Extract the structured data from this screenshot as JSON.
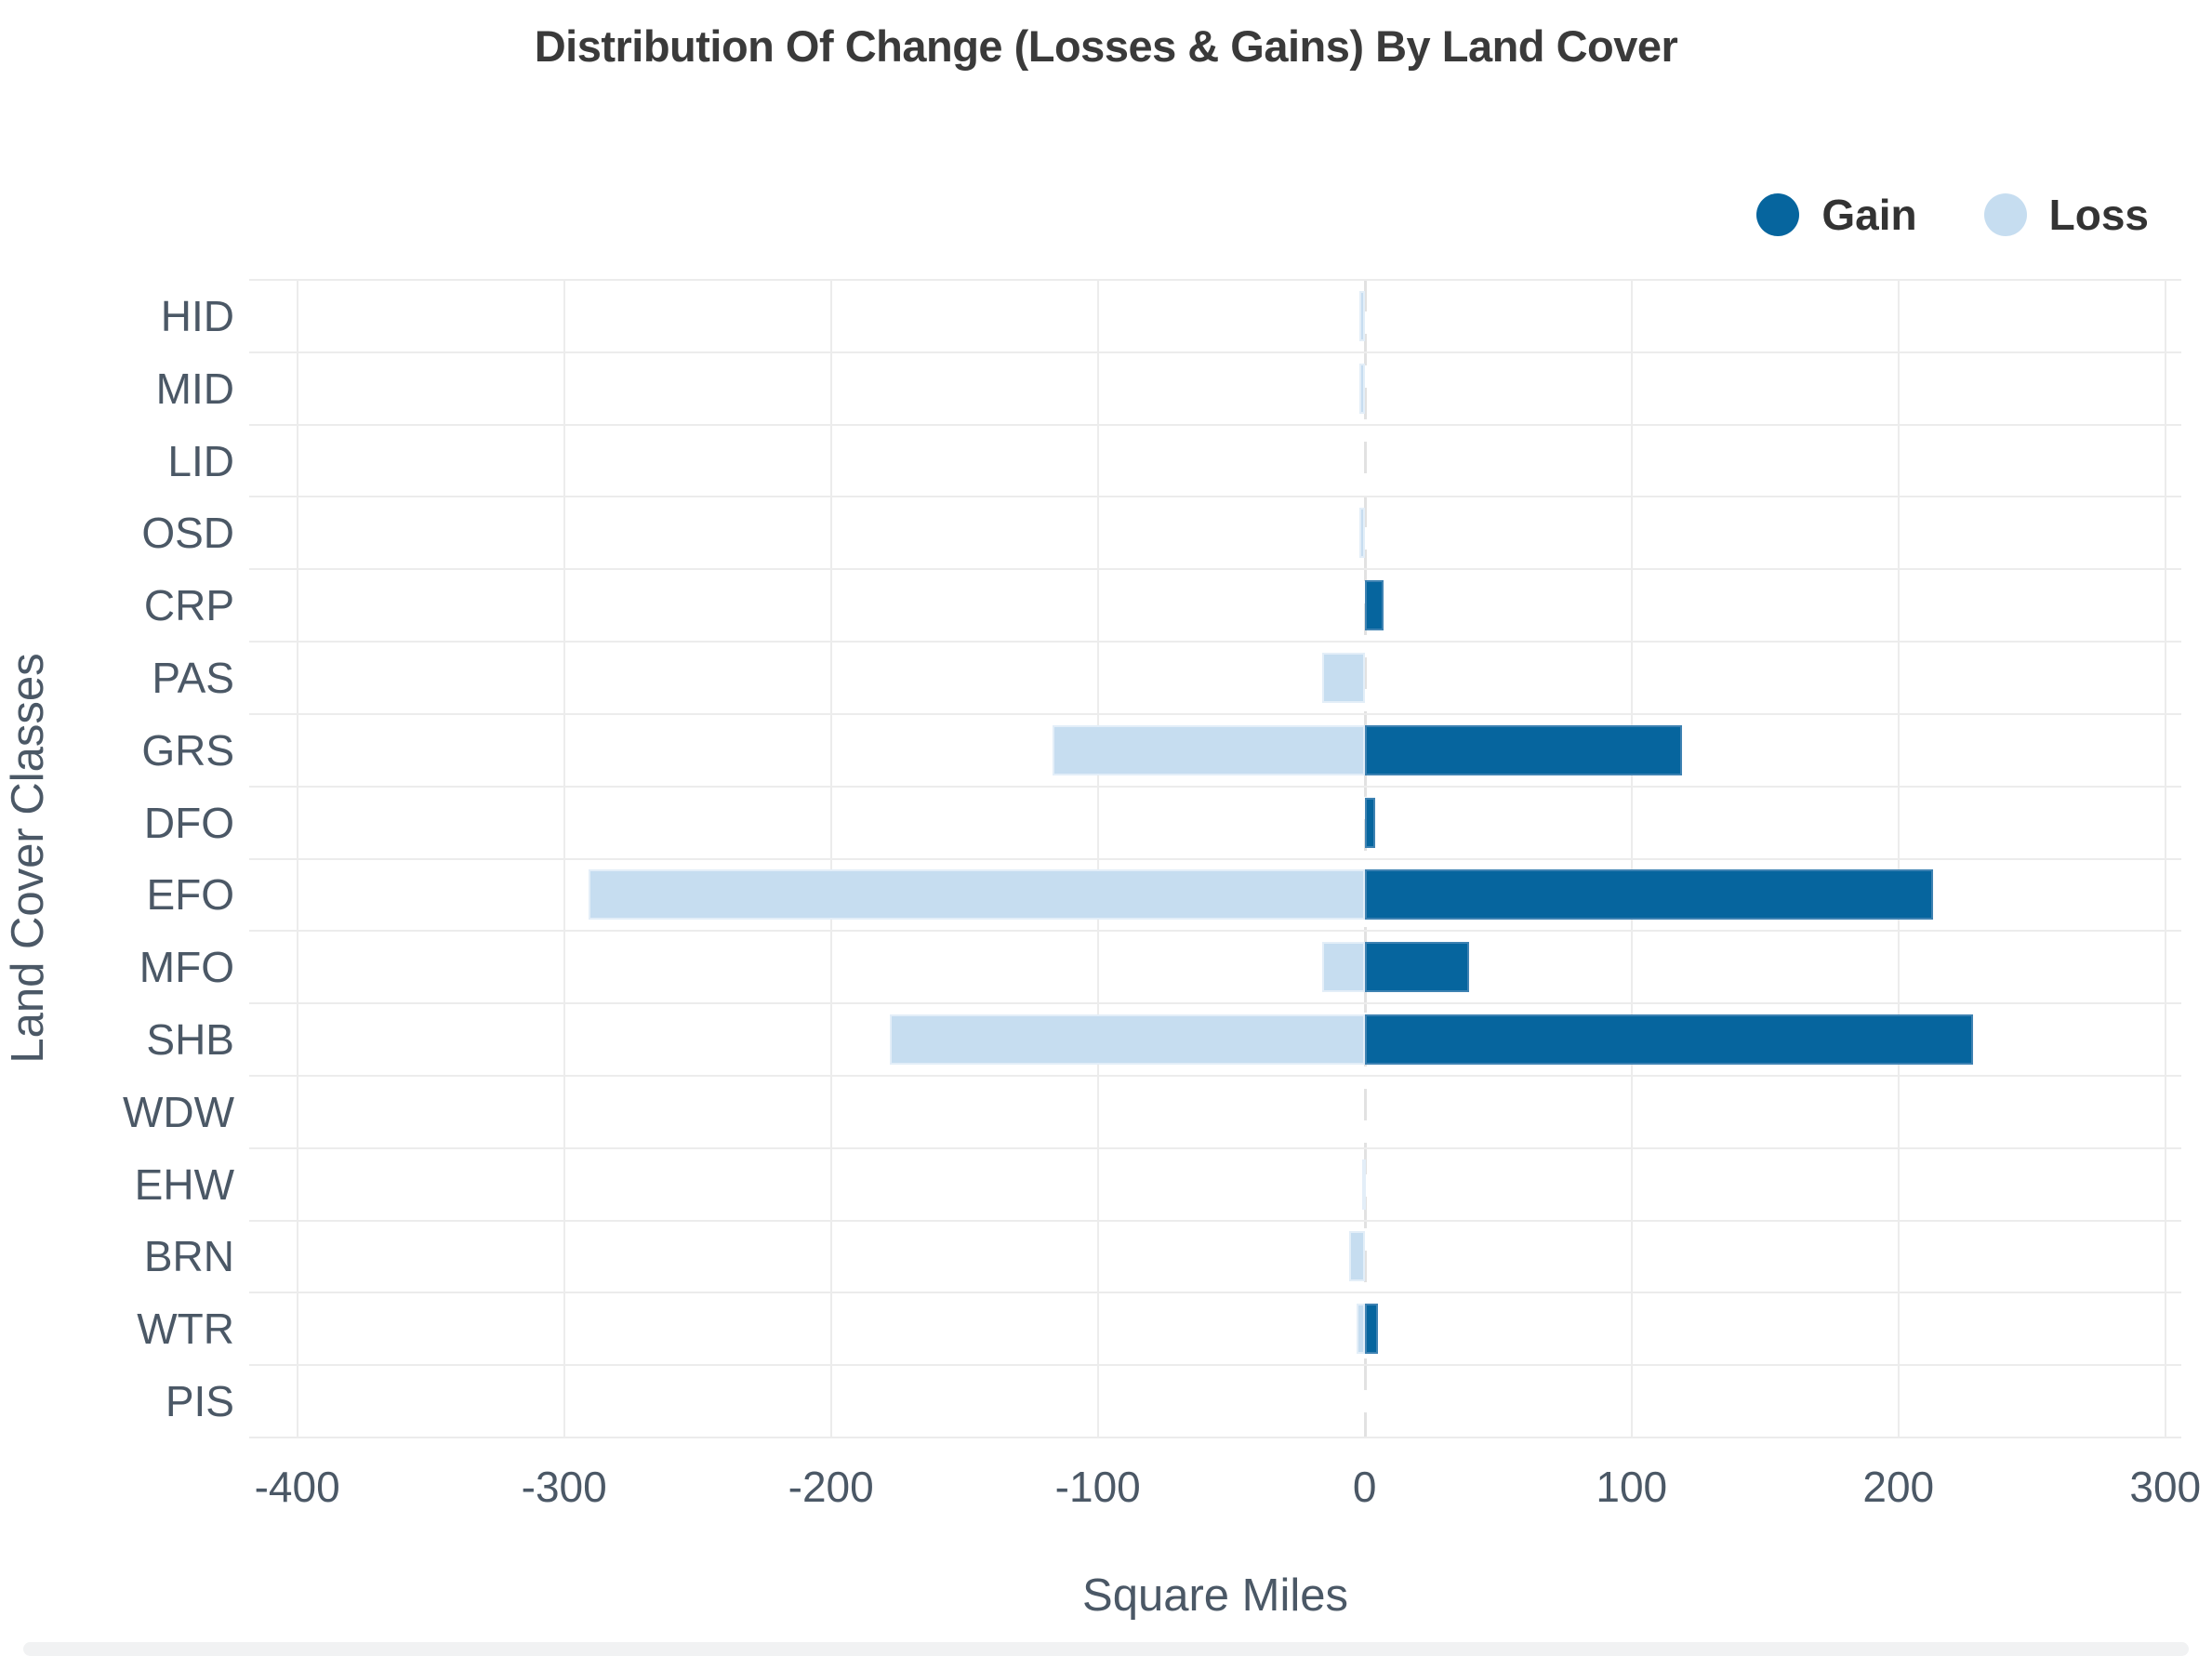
{
  "title": "Distribution Of Change (Losses & Gains) By Land Cover",
  "legend": {
    "items": [
      {
        "id": "gain",
        "label": "Gain"
      },
      {
        "id": "loss",
        "label": "Loss"
      }
    ]
  },
  "colors": {
    "gain": "#06659e",
    "loss": "#c6ddf0",
    "grid": "#ececec",
    "zero_line": "#e2e2e2",
    "title_text": "#3a3a3a",
    "axis_text": "#4b5866"
  },
  "chart_data": {
    "type": "bar",
    "orientation": "horizontal",
    "title": "Distribution Of Change (Losses & Gains) By Land Cover",
    "xlabel": "Square Miles",
    "ylabel": "Land Cover Classes",
    "categories": [
      "HID",
      "MID",
      "LID",
      "OSD",
      "CRP",
      "PAS",
      "GRS",
      "DFO",
      "EFO",
      "MFO",
      "SHB",
      "WDW",
      "EHW",
      "BRN",
      "WTR",
      "PIS"
    ],
    "series": [
      {
        "name": "Gain",
        "values": [
          0,
          0,
          0,
          0,
          7,
          0,
          119,
          4,
          213,
          39,
          228,
          0,
          0,
          0,
          5,
          0
        ]
      },
      {
        "name": "Loss",
        "values": [
          -2,
          -2,
          0,
          -2,
          0,
          -16,
          -117,
          0,
          -291,
          -16,
          -178,
          0,
          -1,
          -6,
          -3,
          0
        ]
      }
    ],
    "xlim": [
      -418,
      306
    ],
    "xticks": [
      -400,
      -300,
      -200,
      -100,
      0,
      100,
      200,
      300
    ],
    "grid": true,
    "legend_position": "top-right"
  }
}
